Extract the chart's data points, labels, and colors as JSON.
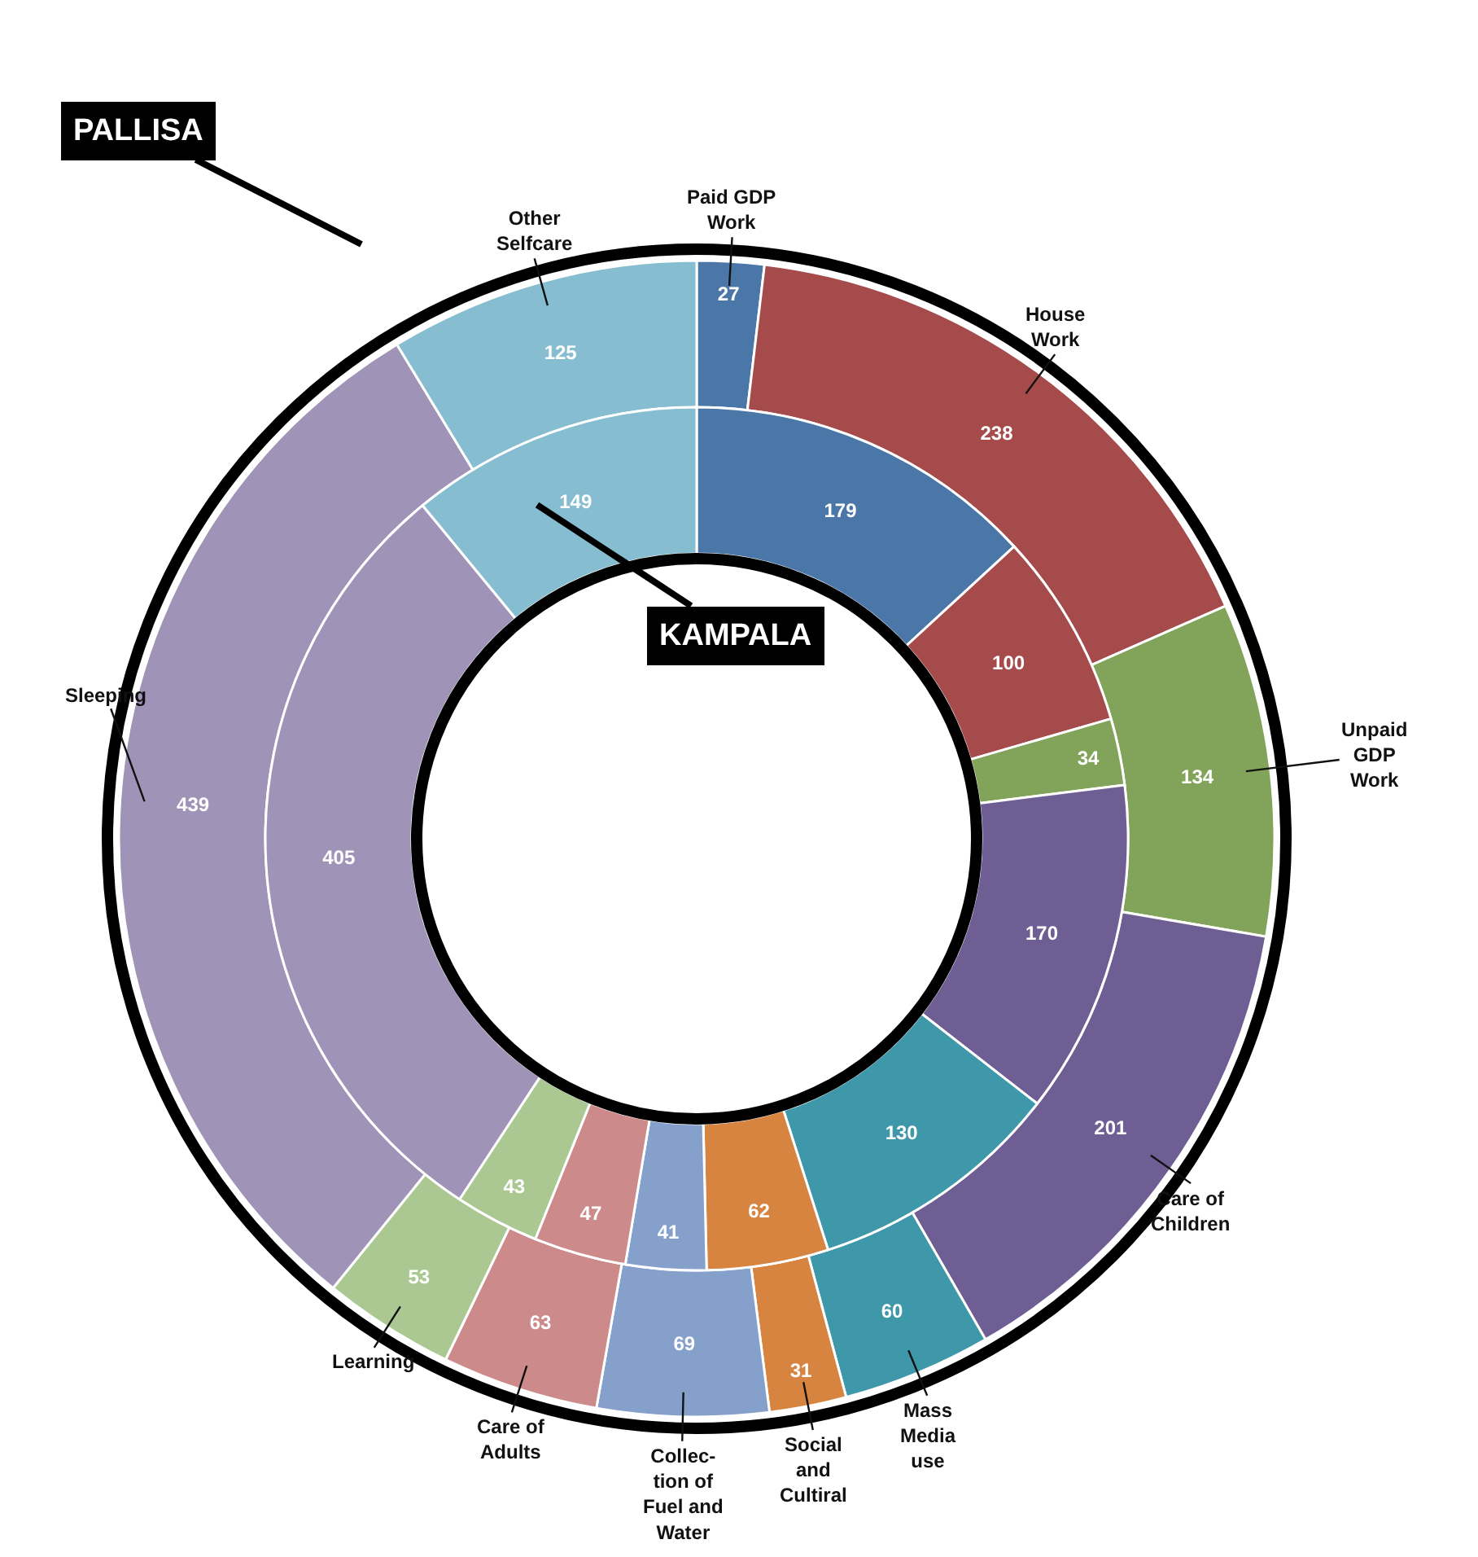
{
  "chart_data": {
    "type": "donut",
    "categories": [
      "Paid GDP\nWork",
      "House\nWork",
      "Unpaid\nGDP\nWork",
      "Care of\nChildren",
      "Mass\nMedia\nuse",
      "Social\nand\nCultiral",
      "Collec-\ntion of\nFuel and\nWater",
      "Care of\nAdults",
      "Learning",
      "Sleeping",
      "Other\nSelfcare"
    ],
    "colors": [
      "#4a76a8",
      "#a64b4b",
      "#82a35a",
      "#6e5e94",
      "#3f97aa",
      "#d6843f",
      "#85a0cb",
      "#cd8a8a",
      "#abc893",
      "#a093b8",
      "#86bdd0"
    ],
    "series": [
      {
        "name": "PALLISA",
        "values": [
          27,
          238,
          134,
          201,
          60,
          31,
          69,
          63,
          53,
          439,
          125
        ]
      },
      {
        "name": "KAMPALA",
        "values": [
          179,
          100,
          34,
          170,
          130,
          62,
          41,
          47,
          43,
          405,
          149
        ]
      }
    ],
    "data_labels": true
  }
}
